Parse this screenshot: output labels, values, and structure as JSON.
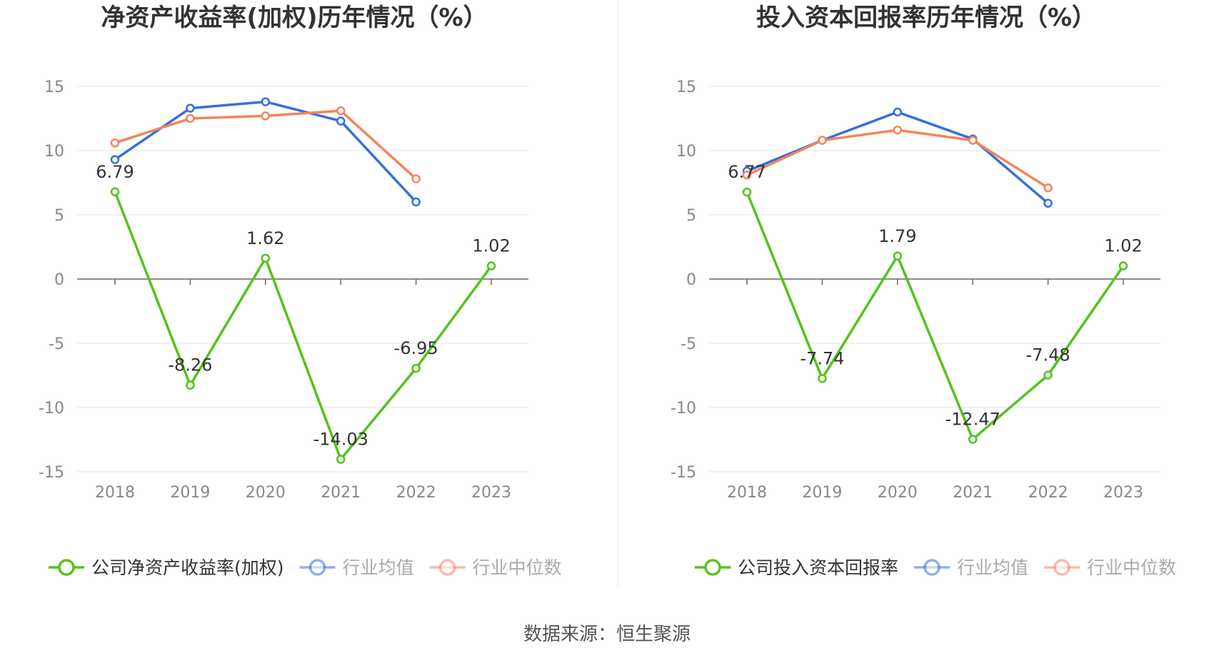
{
  "source_label": "数据来源：恒生聚源",
  "colors": {
    "company": "#52c41a",
    "avg": "#3370e0",
    "median": "#f5845a",
    "grid": "#dfe3f0",
    "axis": "#666666",
    "tick": "#888888",
    "title": "#333333",
    "label": "#333333"
  },
  "chart_data": [
    {
      "type": "line",
      "title": "净资产收益率(加权)历年情况（%）",
      "categories": [
        "2018",
        "2019",
        "2020",
        "2021",
        "2022",
        "2023"
      ],
      "ylim": [
        -15,
        15
      ],
      "yticks": [
        "15",
        "10",
        "5",
        "0",
        "-5",
        "-10",
        "-15"
      ],
      "grid": true,
      "legend_position": "bottom",
      "series": [
        {
          "name": "公司净资产收益率(加权)",
          "key": "company",
          "values": [
            6.79,
            -8.26,
            1.62,
            -14.03,
            -6.95,
            1.02
          ],
          "labels": [
            "6.79",
            "-8.26",
            "1.62",
            "-14.03",
            "-6.95",
            "1.02"
          ]
        },
        {
          "name": "行业均值",
          "key": "avg",
          "values": [
            9.3,
            13.3,
            13.8,
            12.3,
            6.0,
            null
          ]
        },
        {
          "name": "行业中位数",
          "key": "median",
          "values": [
            10.6,
            12.5,
            12.7,
            13.1,
            7.8,
            null
          ]
        }
      ]
    },
    {
      "type": "line",
      "title": "投入资本回报率历年情况（%）",
      "categories": [
        "2018",
        "2019",
        "2020",
        "2021",
        "2022",
        "2023"
      ],
      "ylim": [
        -15,
        15
      ],
      "yticks": [
        "15",
        "10",
        "5",
        "0",
        "-5",
        "-10",
        "-15"
      ],
      "grid": true,
      "legend_position": "bottom",
      "series": [
        {
          "name": "公司投入资本回报率",
          "key": "company",
          "values": [
            6.77,
            -7.74,
            1.79,
            -12.47,
            -7.48,
            1.02
          ],
          "labels": [
            "6.77",
            "-7.74",
            "1.79",
            "-12.47",
            "-7.48",
            "1.02"
          ]
        },
        {
          "name": "行业均值",
          "key": "avg",
          "values": [
            8.4,
            10.8,
            13.0,
            10.9,
            5.9,
            null
          ]
        },
        {
          "name": "行业中位数",
          "key": "median",
          "values": [
            8.1,
            10.8,
            11.6,
            10.8,
            7.1,
            null
          ]
        }
      ]
    }
  ]
}
